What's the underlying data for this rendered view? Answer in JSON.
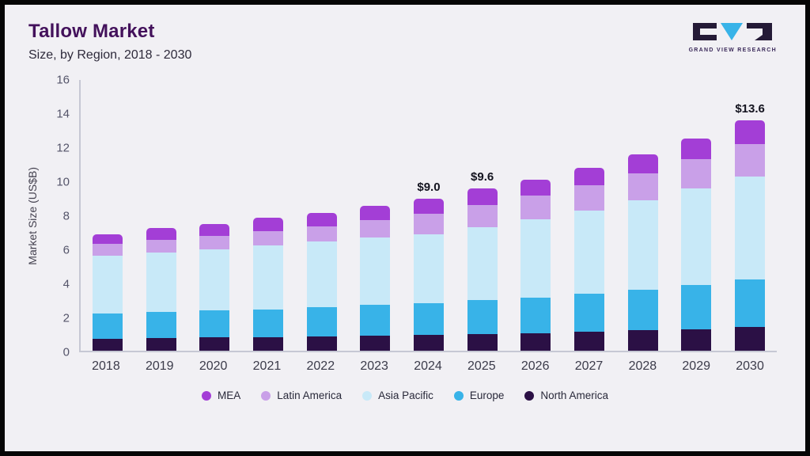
{
  "header": {
    "title": "Tallow Market",
    "subtitle": "Size, by Region, 2018 - 2030",
    "logo_text": "GRAND VIEW RESEARCH"
  },
  "colors": {
    "background": "#f1f0f4",
    "frame_border": "#060606",
    "title": "#43115b",
    "axis_line": "#c6c8d4",
    "logo_dark": "#241a36",
    "logo_cyan": "#38b3e8"
  },
  "chart_data": {
    "type": "bar",
    "stacked": true,
    "title": "Tallow Market Size, by Region, 2018 - 2030",
    "xlabel": "",
    "ylabel": "Market Size (US$B)",
    "ylim": [
      0,
      16
    ],
    "yticks": [
      0,
      2,
      4,
      6,
      8,
      10,
      12,
      14,
      16
    ],
    "grid": false,
    "legend_position": "bottom",
    "categories": [
      "2018",
      "2019",
      "2020",
      "2021",
      "2022",
      "2023",
      "2024",
      "2025",
      "2026",
      "2027",
      "2028",
      "2029",
      "2030"
    ],
    "series": [
      {
        "name": "North America",
        "color": "#2b1045",
        "values": [
          0.7,
          0.73,
          0.78,
          0.8,
          0.85,
          0.9,
          0.95,
          1.0,
          1.05,
          1.12,
          1.2,
          1.28,
          1.4
        ]
      },
      {
        "name": "Europe",
        "color": "#38b3e8",
        "values": [
          1.5,
          1.55,
          1.6,
          1.65,
          1.7,
          1.8,
          1.85,
          2.0,
          2.1,
          2.25,
          2.4,
          2.6,
          2.8
        ]
      },
      {
        "name": "Asia Pacific",
        "color": "#c8e9f8",
        "values": [
          3.4,
          3.5,
          3.6,
          3.75,
          3.9,
          4.0,
          4.1,
          4.3,
          4.6,
          4.9,
          5.3,
          5.7,
          6.1
        ]
      },
      {
        "name": "Latin America",
        "color": "#c9a0e8",
        "values": [
          0.7,
          0.75,
          0.8,
          0.85,
          0.9,
          1.0,
          1.2,
          1.3,
          1.4,
          1.5,
          1.6,
          1.75,
          1.9
        ]
      },
      {
        "name": "MEA",
        "color": "#a33ed6",
        "values": [
          0.6,
          0.7,
          0.72,
          0.8,
          0.8,
          0.85,
          0.9,
          1.0,
          0.95,
          1.03,
          1.1,
          1.2,
          1.4
        ]
      }
    ],
    "legend_order": [
      "MEA",
      "Latin America",
      "Asia Pacific",
      "Europe",
      "North America"
    ],
    "annotations": {
      "2024": "$9.0",
      "2025": "$9.6",
      "2030": "$13.6"
    }
  }
}
